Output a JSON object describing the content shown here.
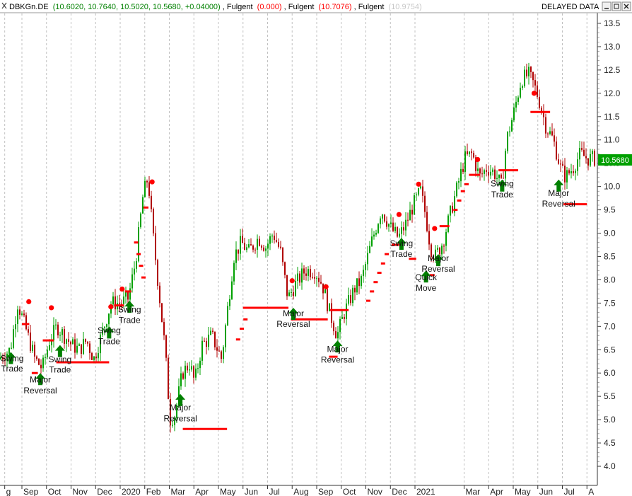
{
  "header": {
    "symbol": "DBKGn.DE",
    "ohlc": "(10.6020, 10.7640, 10.5020, 10.5680, +0.04000)",
    "ind1_name": "Fulgent",
    "ind1_value": "(0.000)",
    "ind2_name": "Fulgent",
    "ind2_value": "(10.7076)",
    "ind3_name": "Fulgent",
    "ind3_value": "(10.9754)",
    "status": "DELAYED DATA",
    "colors": {
      "ohlc": "#008000",
      "ind1": "#ff0000",
      "ind2": "#ff0000",
      "ind3": "#c8c8c8"
    }
  },
  "window_buttons": {
    "minimize": "minimize-icon",
    "restore": "restore-icon",
    "close": "close-icon"
  },
  "chart_data": {
    "type": "candlestick",
    "y_ticks": [
      "13.5",
      "13.0",
      "12.5",
      "12.0",
      "11.5",
      "11.0",
      "10.5",
      "10.0",
      "9.5",
      "9.0",
      "8.5",
      "8.0",
      "7.5",
      "7.0",
      "6.5",
      "6.0",
      "5.5",
      "5.0",
      "4.5",
      "4.0"
    ],
    "ylim": [
      3.65,
      13.75
    ],
    "last_price": "10.5680",
    "colors": {
      "up": "#00a000",
      "down": "#b00000",
      "signal": "#ff0000",
      "arrow": "#008000",
      "grid": "#c0c0c0"
    },
    "x_ticks": [
      {
        "label": "g",
        "pos": 0.3
      },
      {
        "label": "Sep",
        "pos": 1
      },
      {
        "label": "Oct",
        "pos": 2
      },
      {
        "label": "Nov",
        "pos": 3
      },
      {
        "label": "Dec",
        "pos": 4
      },
      {
        "label": "2020",
        "pos": 5
      },
      {
        "label": "Feb",
        "pos": 6
      },
      {
        "label": "Mar",
        "pos": 7
      },
      {
        "label": "Apr",
        "pos": 8
      },
      {
        "label": "May",
        "pos": 9
      },
      {
        "label": "Jun",
        "pos": 10
      },
      {
        "label": "Jul",
        "pos": 11
      },
      {
        "label": "Aug",
        "pos": 12
      },
      {
        "label": "Sep",
        "pos": 13
      },
      {
        "label": "Oct",
        "pos": 14
      },
      {
        "label": "Nov",
        "pos": 15
      },
      {
        "label": "Dec",
        "pos": 16
      },
      {
        "label": "2021",
        "pos": 17
      },
      {
        "label": "Mar",
        "pos": 19
      },
      {
        "label": "Apr",
        "pos": 20
      },
      {
        "label": "May",
        "pos": 21
      },
      {
        "label": "Jun",
        "pos": 22
      },
      {
        "label": "Jul",
        "pos": 23
      },
      {
        "label": "A",
        "pos": 24
      }
    ],
    "price_path": [
      [
        0.0,
        6.3
      ],
      [
        0.5,
        6.5
      ],
      [
        0.8,
        7.5
      ],
      [
        1.1,
        7.0
      ],
      [
        1.5,
        6.3
      ],
      [
        1.8,
        6.1
      ],
      [
        2.1,
        6.7
      ],
      [
        2.4,
        7.0
      ],
      [
        2.7,
        6.8
      ],
      [
        3.0,
        6.6
      ],
      [
        3.3,
        6.5
      ],
      [
        3.6,
        6.7
      ],
      [
        3.9,
        6.3
      ],
      [
        4.2,
        6.8
      ],
      [
        4.6,
        7.5
      ],
      [
        5.0,
        7.5
      ],
      [
        5.3,
        7.6
      ],
      [
        5.6,
        8.4
      ],
      [
        5.9,
        9.8
      ],
      [
        6.1,
        10.2
      ],
      [
        6.3,
        9.0
      ],
      [
        6.6,
        7.5
      ],
      [
        6.8,
        6.5
      ],
      [
        7.0,
        5.0
      ],
      [
        7.2,
        5.1
      ],
      [
        7.5,
        6.0
      ],
      [
        7.8,
        6.2
      ],
      [
        8.0,
        5.8
      ],
      [
        8.3,
        6.6
      ],
      [
        8.7,
        6.8
      ],
      [
        9.1,
        6.3
      ],
      [
        9.6,
        8.5
      ],
      [
        9.9,
        8.8
      ],
      [
        10.2,
        8.6
      ],
      [
        10.6,
        8.9
      ],
      [
        10.9,
        8.7
      ],
      [
        11.2,
        9.0
      ],
      [
        11.5,
        8.6
      ],
      [
        11.8,
        7.6
      ],
      [
        12.1,
        7.9
      ],
      [
        12.5,
        8.2
      ],
      [
        12.9,
        8.2
      ],
      [
        13.2,
        7.9
      ],
      [
        13.5,
        7.3
      ],
      [
        13.8,
        6.8
      ],
      [
        14.1,
        7.3
      ],
      [
        14.5,
        7.8
      ],
      [
        14.8,
        8.0
      ],
      [
        15.2,
        8.8
      ],
      [
        15.6,
        9.5
      ],
      [
        16.0,
        9.1
      ],
      [
        16.3,
        8.9
      ],
      [
        16.6,
        9.2
      ],
      [
        16.9,
        9.6
      ],
      [
        17.2,
        9.9
      ],
      [
        17.4,
        9.4
      ],
      [
        17.6,
        8.7
      ],
      [
        17.8,
        8.5
      ],
      [
        18.1,
        8.8
      ],
      [
        18.4,
        9.4
      ],
      [
        18.7,
        10.0
      ],
      [
        19.0,
        10.6
      ],
      [
        19.3,
        10.7
      ],
      [
        19.6,
        10.2
      ],
      [
        19.9,
        10.4
      ],
      [
        20.2,
        10.3
      ],
      [
        20.5,
        10.0
      ],
      [
        20.7,
        11.0
      ],
      [
        21.0,
        11.6
      ],
      [
        21.3,
        12.3
      ],
      [
        21.6,
        12.4
      ],
      [
        21.8,
        12.2
      ],
      [
        22.0,
        11.9
      ],
      [
        22.3,
        11.3
      ],
      [
        22.6,
        11.0
      ],
      [
        22.9,
        10.4
      ],
      [
        23.1,
        10.2
      ],
      [
        23.4,
        10.4
      ],
      [
        23.7,
        10.7
      ],
      [
        24.0,
        10.6
      ]
    ],
    "dots": [
      [
        1.28,
        7.53
      ],
      [
        2.2,
        7.4
      ],
      [
        4.62,
        7.42
      ],
      [
        5.08,
        7.8
      ],
      [
        6.3,
        10.1
      ],
      [
        12.0,
        7.98
      ],
      [
        13.38,
        7.85
      ],
      [
        16.35,
        9.4
      ],
      [
        17.15,
        10.05
      ],
      [
        17.8,
        9.1
      ],
      [
        19.55,
        10.58
      ],
      [
        21.85,
        12.0
      ]
    ],
    "ladder": [
      [
        5.65,
        8.8
      ],
      [
        5.75,
        8.55
      ],
      [
        5.85,
        8.3
      ],
      [
        5.95,
        8.05
      ],
      [
        9.8,
        6.72
      ],
      [
        9.95,
        6.95
      ],
      [
        10.1,
        7.15
      ],
      [
        15.1,
        7.55
      ],
      [
        15.25,
        7.75
      ],
      [
        15.4,
        7.95
      ],
      [
        15.55,
        8.15
      ],
      [
        15.7,
        8.35
      ],
      [
        15.85,
        8.55
      ],
      [
        18.65,
        9.5
      ],
      [
        18.8,
        9.7
      ],
      [
        18.95,
        9.9
      ],
      [
        19.1,
        10.05
      ]
    ],
    "hlines": [
      [
        1.0,
        1.3,
        7.05
      ],
      [
        1.4,
        1.65,
        6.0
      ],
      [
        1.85,
        2.3,
        6.7
      ],
      [
        2.4,
        4.55,
        6.23
      ],
      [
        4.75,
        5.15,
        7.45
      ],
      [
        5.2,
        5.45,
        7.75
      ],
      [
        5.95,
        6.15,
        9.55
      ],
      [
        7.55,
        9.35,
        4.8
      ],
      [
        10.0,
        11.85,
        7.4
      ],
      [
        11.95,
        13.45,
        7.15
      ],
      [
        13.55,
        14.3,
        7.35
      ],
      [
        13.5,
        13.85,
        6.35
      ],
      [
        16.05,
        16.35,
        8.75
      ],
      [
        16.75,
        17.05,
        8.45
      ],
      [
        17.6,
        17.8,
        8.1
      ],
      [
        18.0,
        18.4,
        9.15
      ],
      [
        19.2,
        19.65,
        10.25
      ],
      [
        20.4,
        21.2,
        10.35
      ],
      [
        21.7,
        22.5,
        11.6
      ],
      [
        23.05,
        24.0,
        9.62
      ]
    ],
    "arrows": [
      [
        0.55,
        6.45
      ],
      [
        1.75,
        6.0
      ],
      [
        2.55,
        6.6
      ],
      [
        4.55,
        7.0
      ],
      [
        5.38,
        7.55
      ],
      [
        7.45,
        5.55
      ],
      [
        12.05,
        7.4
      ],
      [
        13.85,
        6.7
      ],
      [
        16.45,
        8.9
      ],
      [
        17.45,
        8.2
      ],
      [
        17.95,
        8.55
      ],
      [
        20.55,
        10.15
      ],
      [
        22.85,
        10.15
      ]
    ],
    "annotations": [
      {
        "text": "Swing",
        "pos": 0.6,
        "y": 6.25
      },
      {
        "text": "Trade",
        "pos": 0.6,
        "y": 6.03
      },
      {
        "text": "Major",
        "pos": 1.75,
        "y": 5.8
      },
      {
        "text": "Reversal",
        "pos": 1.75,
        "y": 5.56
      },
      {
        "text": "Swing",
        "pos": 2.55,
        "y": 6.23
      },
      {
        "text": "Trade",
        "pos": 2.55,
        "y": 6.01
      },
      {
        "text": "Swing",
        "pos": 4.55,
        "y": 6.85
      },
      {
        "text": "Trade",
        "pos": 4.55,
        "y": 6.62
      },
      {
        "text": "Swing",
        "pos": 5.38,
        "y": 7.3
      },
      {
        "text": "Trade",
        "pos": 5.38,
        "y": 7.07
      },
      {
        "text": "Major",
        "pos": 7.45,
        "y": 5.2
      },
      {
        "text": "Reversal",
        "pos": 7.45,
        "y": 4.96
      },
      {
        "text": "Major",
        "pos": 12.05,
        "y": 7.22
      },
      {
        "text": "Reversal",
        "pos": 12.05,
        "y": 6.99
      },
      {
        "text": "Major",
        "pos": 13.85,
        "y": 6.45
      },
      {
        "text": "Reversal",
        "pos": 13.85,
        "y": 6.22
      },
      {
        "text": "Swing",
        "pos": 16.45,
        "y": 8.72
      },
      {
        "text": "Trade",
        "pos": 16.45,
        "y": 8.49
      },
      {
        "text": "Quick",
        "pos": 17.45,
        "y": 7.99
      },
      {
        "text": "Move",
        "pos": 17.45,
        "y": 7.76
      },
      {
        "text": "Major",
        "pos": 17.95,
        "y": 8.4
      },
      {
        "text": "Reversal",
        "pos": 17.95,
        "y": 8.17
      },
      {
        "text": "Swing",
        "pos": 20.55,
        "y": 10.0
      },
      {
        "text": "Trade",
        "pos": 20.55,
        "y": 9.77
      },
      {
        "text": "Major",
        "pos": 22.85,
        "y": 9.8
      },
      {
        "text": "Reversal",
        "pos": 22.85,
        "y": 9.57
      }
    ]
  }
}
